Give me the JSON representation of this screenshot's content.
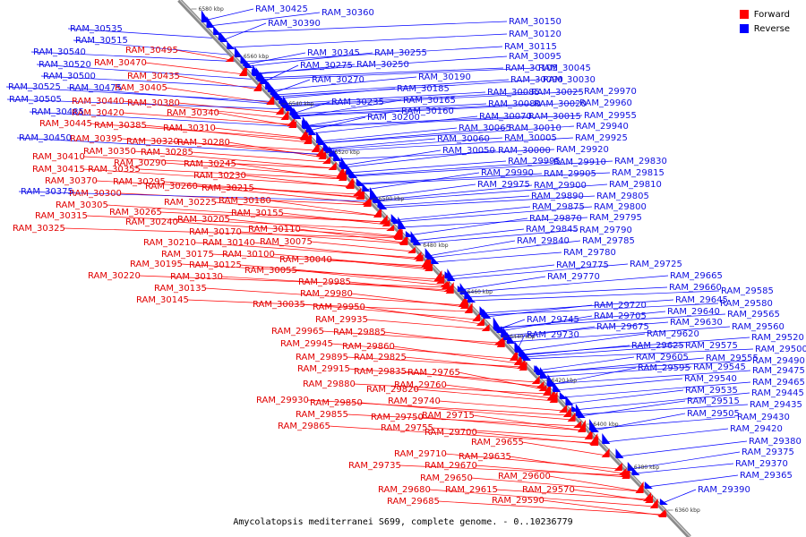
{
  "legend": {
    "forward": {
      "label": "Forward",
      "color": "#ff0000"
    },
    "reverse": {
      "label": "Reverse",
      "color": "#0000ff"
    }
  },
  "caption": "Amycolatopsis mediterranei S699, complete genome. - 0..10236779",
  "scale_ticks": [
    "6580 kbp",
    "6560 kbp",
    "6540 kbp",
    "6520 kbp",
    "6500 kbp",
    "6480 kbp",
    "6460 kbp",
    "6440 kbp",
    "6420 kbp",
    "6400 kbp",
    "6380 kbp",
    "6360 kbp"
  ],
  "labels_forward": [
    "RAM_30495",
    "RAM_30470",
    "RAM_30435",
    "RAM_30405",
    "RAM_30440",
    "RAM_30380",
    "RAM_30420",
    "RAM_30340",
    "RAM_30445",
    "RAM_30385",
    "RAM_30310",
    "RAM_30395",
    "RAM_30320",
    "RAM_30280",
    "RAM_30350",
    "RAM_30285",
    "RAM_30410",
    "RAM_30290",
    "RAM_30245",
    "RAM_30415",
    "RAM_30355",
    "RAM_30230",
    "RAM_30370",
    "RAM_30295",
    "RAM_30260",
    "RAM_30215",
    "RAM_30300",
    "RAM_30225",
    "RAM_30180",
    "RAM_30305",
    "RAM_30265",
    "RAM_30155",
    "RAM_30315",
    "RAM_30240",
    "RAM_30205",
    "RAM_30325",
    "RAM_30170",
    "RAM_30110",
    "RAM_30210",
    "RAM_30140",
    "RAM_30075",
    "RAM_30175",
    "RAM_30100",
    "RAM_30195",
    "RAM_30125",
    "RAM_30040",
    "RAM_30220",
    "RAM_30130",
    "RAM_30055",
    "RAM_30135",
    "RAM_29985",
    "RAM_30145",
    "RAM_29980",
    "RAM_30035",
    "RAM_29950",
    "RAM_29935",
    "RAM_29965",
    "RAM_29885",
    "RAM_29945",
    "RAM_29860",
    "RAM_29895",
    "RAM_29825",
    "RAM_29915",
    "RAM_29835",
    "RAM_29765",
    "RAM_29880",
    "RAM_29820",
    "RAM_29760",
    "RAM_29930",
    "RAM_29850",
    "RAM_29740",
    "RAM_29855",
    "RAM_29750",
    "RAM_29715",
    "RAM_29865",
    "RAM_29755",
    "RAM_29700",
    "RAM_29655",
    "RAM_29710",
    "RAM_29635",
    "RAM_29735",
    "RAM_29670",
    "RAM_29650",
    "RAM_29600",
    "RAM_29680",
    "RAM_29615",
    "RAM_29570",
    "RAM_29685",
    "RAM_29590"
  ],
  "labels_reverse": [
    "RAM_30535",
    "RAM_30425",
    "RAM_30360",
    "RAM_30515",
    "RAM_30390",
    "RAM_30540",
    "RAM_30345",
    "RAM_30255",
    "RAM_30520",
    "RAM_30275",
    "RAM_30250",
    "RAM_30500",
    "RAM_30270",
    "RAM_30525",
    "RAM_30475",
    "RAM_30505",
    "RAM_30235",
    "RAM_30200",
    "RAM_30485",
    "RAM_30450",
    "RAM_30375",
    "RAM_30150",
    "RAM_30120",
    "RAM_30115",
    "RAM_30095",
    "RAM_30105",
    "RAM_30045",
    "RAM_30190",
    "RAM_30090",
    "RAM_30030",
    "RAM_30185",
    "RAM_30085",
    "RAM_30025",
    "RAM_29970",
    "RAM_30165",
    "RAM_30080",
    "RAM_30020",
    "RAM_29960",
    "RAM_30160",
    "RAM_30070",
    "RAM_30015",
    "RAM_29955",
    "RAM_30065",
    "RAM_30010",
    "RAM_29940",
    "RAM_30060",
    "RAM_30005",
    "RAM_29925",
    "RAM_30050",
    "RAM_30000",
    "RAM_29920",
    "RAM_29995",
    "RAM_29910",
    "RAM_29830",
    "RAM_29990",
    "RAM_29905",
    "RAM_29815",
    "RAM_29975",
    "RAM_29900",
    "RAM_29810",
    "RAM_29890",
    "RAM_29805",
    "RAM_29875",
    "RAM_29800",
    "RAM_29870",
    "RAM_29795",
    "RAM_29845",
    "RAM_29790",
    "RAM_29840",
    "RAM_29785",
    "RAM_29780",
    "RAM_29775",
    "RAM_29770",
    "RAM_29725",
    "RAM_29665",
    "RAM_29660",
    "RAM_29720",
    "RAM_29645",
    "RAM_29705",
    "RAM_29640",
    "RAM_29745",
    "RAM_29675",
    "RAM_29630",
    "RAM_29730",
    "RAM_29620",
    "RAM_29625",
    "RAM_29575",
    "RAM_29605",
    "RAM_29555",
    "RAM_29595",
    "RAM_29545",
    "RAM_29540",
    "RAM_29535",
    "RAM_29515",
    "RAM_29505",
    "RAM_29585",
    "RAM_29580",
    "RAM_29565",
    "RAM_29560",
    "RAM_29520",
    "RAM_29500",
    "RAM_29490",
    "RAM_29475",
    "RAM_29465",
    "RAM_29445",
    "RAM_29435",
    "RAM_29430",
    "RAM_29420",
    "RAM_29380",
    "RAM_29375",
    "RAM_29370",
    "RAM_29365",
    "RAM_29390"
  ]
}
